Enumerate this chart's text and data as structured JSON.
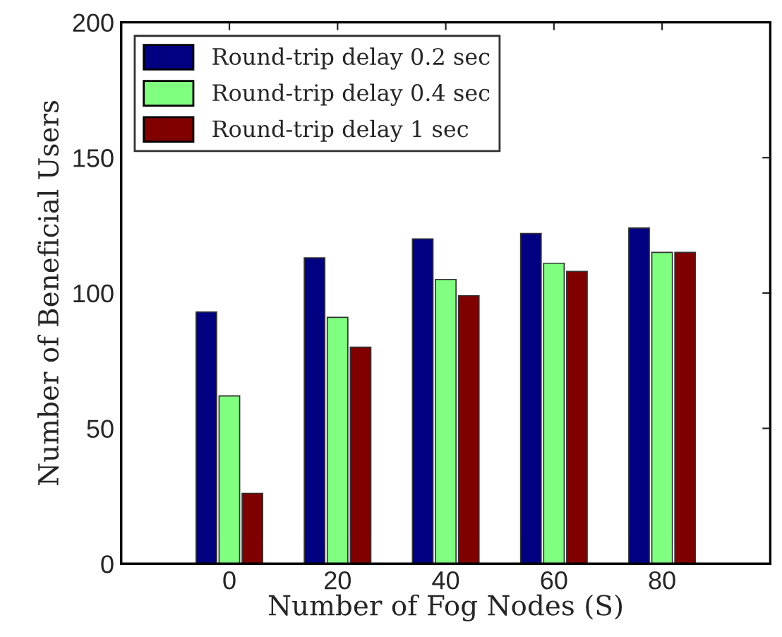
{
  "chart_data": {
    "type": "bar",
    "xlabel": "Number of Fog Nodes (S)",
    "ylabel": "Number of Beneficial Users",
    "x": [
      0,
      20,
      40,
      60,
      80
    ],
    "series": [
      {
        "name": "Round-trip delay 0.2 sec",
        "color": "#000080",
        "values": [
          93,
          113,
          120,
          122,
          124
        ]
      },
      {
        "name": "Round-trip delay 0.4 sec",
        "color": "#80ff80",
        "values": [
          62,
          91,
          105,
          111,
          115
        ]
      },
      {
        "name": "Round-trip delay 1 sec",
        "color": "#800000",
        "values": [
          26,
          80,
          99,
          108,
          115
        ]
      }
    ],
    "xlim": [
      -20,
      100
    ],
    "xticks": [
      0,
      20,
      40,
      60,
      80
    ],
    "ylim": [
      0,
      200
    ],
    "yticks": [
      0,
      50,
      100,
      150,
      200
    ],
    "grid": false,
    "legend": "top left"
  }
}
